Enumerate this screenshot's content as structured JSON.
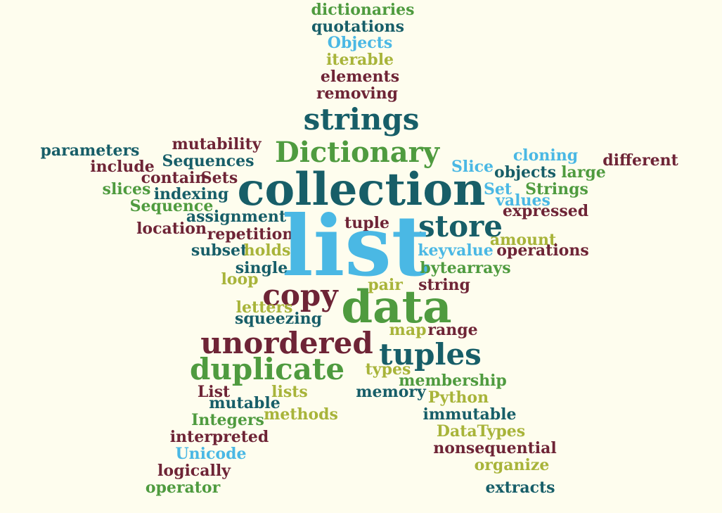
{
  "colors": {
    "background": "#fefdee",
    "teal": "#175e68",
    "green": "#4f9b3f",
    "sky": "#4ab8e4",
    "olive": "#a8b43a",
    "maroon": "#6e2436"
  },
  "words": [
    {
      "text": "dictionaries",
      "color": "green"
    },
    {
      "text": "quotations",
      "color": "teal"
    },
    {
      "text": "Objects",
      "color": "sky"
    },
    {
      "text": "iterable",
      "color": "olive"
    },
    {
      "text": "elements",
      "color": "maroon"
    },
    {
      "text": "removing",
      "color": "maroon"
    },
    {
      "text": "strings",
      "color": "teal"
    },
    {
      "text": "Dictionary",
      "color": "green"
    },
    {
      "text": "parameters",
      "color": "teal"
    },
    {
      "text": "mutability",
      "color": "maroon"
    },
    {
      "text": "include",
      "color": "maroon"
    },
    {
      "text": "Sequences",
      "color": "teal"
    },
    {
      "text": "cloning",
      "color": "sky"
    },
    {
      "text": "different",
      "color": "maroon"
    },
    {
      "text": "Slice",
      "color": "sky"
    },
    {
      "text": "objects",
      "color": "teal"
    },
    {
      "text": "large",
      "color": "green"
    },
    {
      "text": "contain",
      "color": "maroon"
    },
    {
      "text": "Sets",
      "color": "maroon"
    },
    {
      "text": "collection",
      "color": "teal"
    },
    {
      "text": "slices",
      "color": "green"
    },
    {
      "text": "indexing",
      "color": "teal"
    },
    {
      "text": "Set",
      "color": "sky"
    },
    {
      "text": "Strings",
      "color": "green"
    },
    {
      "text": "values",
      "color": "sky"
    },
    {
      "text": "Sequence",
      "color": "green"
    },
    {
      "text": "expressed",
      "color": "maroon"
    },
    {
      "text": "assignment",
      "color": "teal"
    },
    {
      "text": "location",
      "color": "maroon"
    },
    {
      "text": "tuple",
      "color": "maroon"
    },
    {
      "text": "store",
      "color": "teal"
    },
    {
      "text": "repetition",
      "color": "maroon"
    },
    {
      "text": "list",
      "color": "sky"
    },
    {
      "text": "amount",
      "color": "olive"
    },
    {
      "text": "subset",
      "color": "teal"
    },
    {
      "text": "holds",
      "color": "olive"
    },
    {
      "text": "keyvalue",
      "color": "sky"
    },
    {
      "text": "operations",
      "color": "maroon"
    },
    {
      "text": "single",
      "color": "teal"
    },
    {
      "text": "bytearrays",
      "color": "green"
    },
    {
      "text": "loop",
      "color": "olive"
    },
    {
      "text": "pair",
      "color": "olive"
    },
    {
      "text": "string",
      "color": "maroon"
    },
    {
      "text": "copy",
      "color": "maroon"
    },
    {
      "text": "letters",
      "color": "olive"
    },
    {
      "text": "data",
      "color": "green"
    },
    {
      "text": "squeezing",
      "color": "teal"
    },
    {
      "text": "map",
      "color": "olive"
    },
    {
      "text": "range",
      "color": "maroon"
    },
    {
      "text": "unordered",
      "color": "maroon"
    },
    {
      "text": "tuples",
      "color": "teal"
    },
    {
      "text": "duplicate",
      "color": "green"
    },
    {
      "text": "types",
      "color": "olive"
    },
    {
      "text": "membership",
      "color": "green"
    },
    {
      "text": "List",
      "color": "maroon"
    },
    {
      "text": "lists",
      "color": "olive"
    },
    {
      "text": "memory",
      "color": "teal"
    },
    {
      "text": "Python",
      "color": "olive"
    },
    {
      "text": "mutable",
      "color": "teal"
    },
    {
      "text": "Integers",
      "color": "green"
    },
    {
      "text": "methods",
      "color": "olive"
    },
    {
      "text": "immutable",
      "color": "teal"
    },
    {
      "text": "DataTypes",
      "color": "olive"
    },
    {
      "text": "interpreted",
      "color": "maroon"
    },
    {
      "text": "nonsequential",
      "color": "maroon"
    },
    {
      "text": "Unicode",
      "color": "sky"
    },
    {
      "text": "organize",
      "color": "olive"
    },
    {
      "text": "logically",
      "color": "maroon"
    },
    {
      "text": "operator",
      "color": "green"
    },
    {
      "text": "extracts",
      "color": "teal"
    }
  ]
}
